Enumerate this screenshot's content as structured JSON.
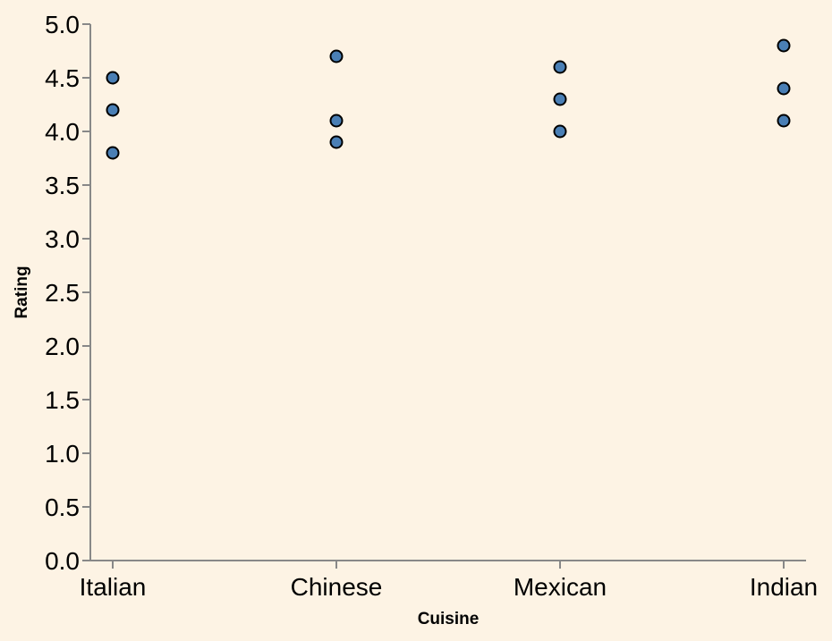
{
  "chart_data": {
    "type": "scatter",
    "categories": [
      "Italian",
      "Chinese",
      "Mexican",
      "Indian"
    ],
    "points": [
      {
        "x": "Italian",
        "y": 4.5
      },
      {
        "x": "Italian",
        "y": 4.2
      },
      {
        "x": "Italian",
        "y": 3.8
      },
      {
        "x": "Chinese",
        "y": 4.7
      },
      {
        "x": "Chinese",
        "y": 4.1
      },
      {
        "x": "Chinese",
        "y": 3.9
      },
      {
        "x": "Mexican",
        "y": 4.6
      },
      {
        "x": "Mexican",
        "y": 4.3
      },
      {
        "x": "Mexican",
        "y": 4.0
      },
      {
        "x": "Indian",
        "y": 4.8
      },
      {
        "x": "Indian",
        "y": 4.4
      },
      {
        "x": "Indian",
        "y": 4.1
      }
    ],
    "xlabel": "Cuisine",
    "ylabel": "Rating",
    "ylim": [
      0,
      5
    ],
    "yticks": [
      "0.0",
      "0.5",
      "1.0",
      "1.5",
      "2.0",
      "2.5",
      "3.0",
      "3.5",
      "4.0",
      "4.5",
      "5.0"
    ],
    "grid": false,
    "background_color": "#fdf3e4",
    "point_color": "#4a7fb5"
  }
}
